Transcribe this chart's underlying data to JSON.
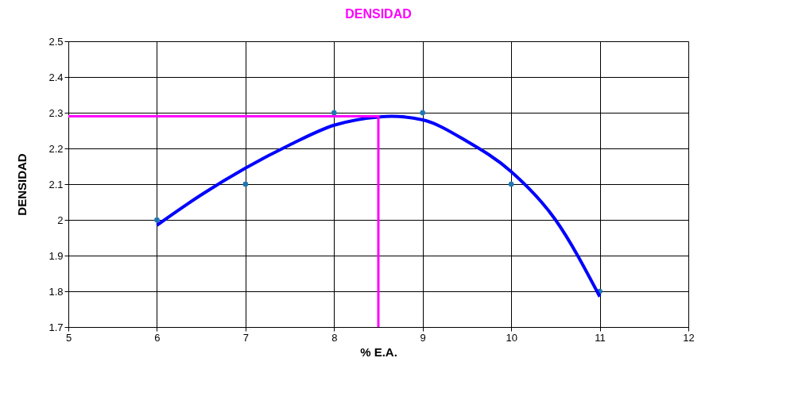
{
  "chart_data": {
    "type": "scatter",
    "title": "DENSIDAD",
    "xlabel": "% E.A.",
    "ylabel": "DENSIDAD",
    "xlim": [
      5,
      12
    ],
    "xticks": [
      5,
      6,
      7,
      8,
      9,
      10,
      11,
      12
    ],
    "ylim": [
      1.7,
      2.5
    ],
    "yticks": [
      1.7,
      1.8,
      1.9,
      2,
      2.1,
      2.2,
      2.3,
      2.4,
      2.5
    ],
    "grid": true,
    "marker": "circle",
    "line_style": "solid",
    "series": [
      {
        "color": "#1f77b4",
        "x": [
          6,
          7,
          8,
          9,
          10,
          11
        ],
        "values": [
          2.0,
          2.1,
          2.3,
          2.3,
          2.1,
          1.8
        ]
      },
      {
        "type": "line",
        "marker": "none",
        "color": "#0000ff",
        "x": [
          6,
          6.5,
          7,
          7.5,
          8,
          8.5,
          8.65,
          9,
          9.5,
          10,
          10.5,
          11
        ],
        "values": [
          1.985,
          2.07,
          2.145,
          2.21,
          2.265,
          2.288,
          2.29,
          2.28,
          2.22,
          2.135,
          2.0,
          1.785
        ]
      },
      {
        "type": "line",
        "marker": "none",
        "color": "#ff00ff",
        "x": [
          5,
          8.5,
          8.5
        ],
        "values": [
          2.29,
          2.29,
          1.7
        ]
      }
    ]
  }
}
